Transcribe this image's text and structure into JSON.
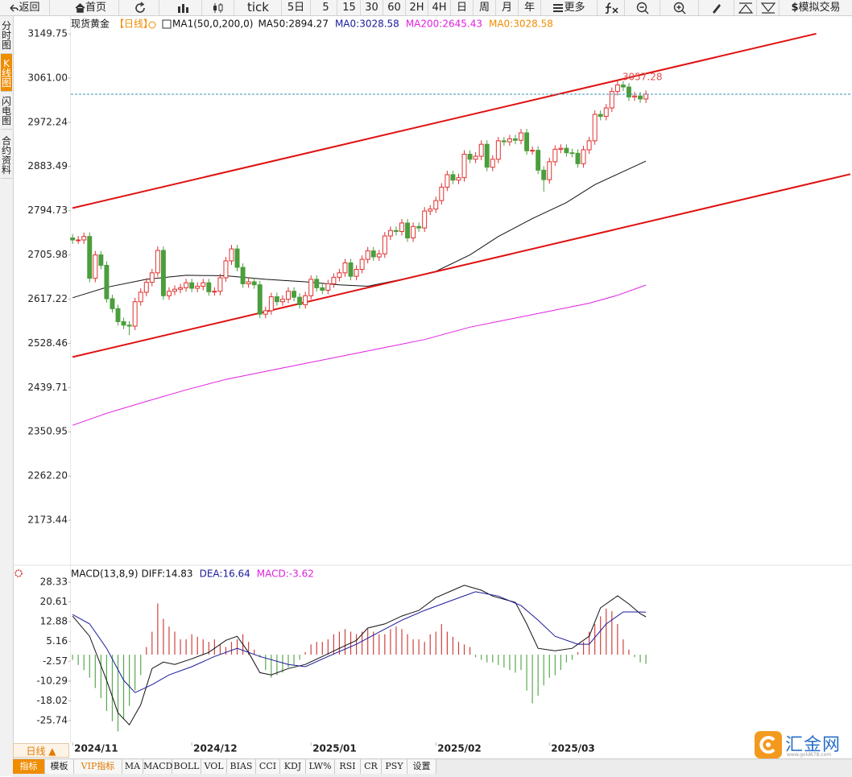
{
  "toolbar": {
    "back": "返回",
    "home": "首页",
    "buttons": [
      "tick",
      "5日",
      "5",
      "15",
      "30",
      "60",
      "2H",
      "4H",
      "日",
      "周",
      "月",
      "年"
    ],
    "more": "更多",
    "sim_trade": "模拟交易"
  },
  "sidebar": [
    "分时图",
    "K线图",
    "闪电图",
    "合约资料"
  ],
  "chart_data": [
    {
      "type": "candlestick",
      "title": "现货黄金",
      "period": "【日线】",
      "indicator": "MA1(50,0,200,0)",
      "legend": [
        {
          "text": "MA50:2894.27",
          "color": "#111111"
        },
        {
          "text": "MA0:3028.58",
          "color": "#1a1a9c"
        },
        {
          "text": "MA200:2645.43",
          "color": "#e020e0"
        },
        {
          "text": "MA0:3028.58",
          "color": "#f08c00"
        }
      ],
      "open": [
        2740,
        2736,
        2736,
        2743,
        2659,
        2706,
        2685,
        2618,
        2598,
        2572,
        2565,
        2563,
        2612,
        2631,
        2651,
        2670,
        2715,
        2624,
        2633,
        2637,
        2640,
        2650,
        2639,
        2643,
        2650,
        2632,
        2633,
        2660,
        2694,
        2718,
        2681,
        2648,
        2652,
        2646,
        2587,
        2594,
        2622,
        2612,
        2617,
        2633,
        2621,
        2606,
        2624,
        2657,
        2640,
        2635,
        2648,
        2661,
        2670,
        2690,
        2663,
        2677,
        2697,
        2714,
        2702,
        2708,
        2744,
        2755,
        2753,
        2770,
        2740,
        2763,
        2760,
        2794,
        2798,
        2815,
        2842,
        2867,
        2856,
        2861,
        2908,
        2898,
        2904,
        2928,
        2882,
        2898,
        2935,
        2933,
        2939,
        2936,
        2951,
        2915,
        2916,
        2876,
        2857,
        2893,
        2918,
        2920,
        2911,
        2910,
        2889,
        2917,
        2935,
        2988,
        2984,
        3001,
        3034,
        3047,
        3043,
        3023,
        3025,
        3019
      ],
      "high": [
        2748,
        2744,
        2751,
        2751,
        2714,
        2714,
        2693,
        2626,
        2606,
        2580,
        2573,
        2620,
        2639,
        2659,
        2678,
        2723,
        2723,
        2641,
        2645,
        2648,
        2658,
        2658,
        2651,
        2658,
        2658,
        2641,
        2668,
        2702,
        2726,
        2726,
        2689,
        2660,
        2660,
        2654,
        2602,
        2630,
        2630,
        2625,
        2641,
        2641,
        2629,
        2632,
        2665,
        2665,
        2648,
        2656,
        2669,
        2678,
        2698,
        2698,
        2685,
        2705,
        2722,
        2722,
        2716,
        2752,
        2763,
        2763,
        2778,
        2778,
        2771,
        2771,
        2802,
        2806,
        2823,
        2850,
        2875,
        2875,
        2869,
        2916,
        2916,
        2912,
        2936,
        2936,
        2906,
        2943,
        2943,
        2947,
        2947,
        2959,
        2959,
        2924,
        2924,
        2884,
        2901,
        2926,
        2928,
        2928,
        2919,
        2918,
        2925,
        2943,
        2996,
        2996,
        3009,
        3042,
        3057.28,
        3055,
        3051,
        3033,
        3033,
        3036
      ],
      "low": [
        2728,
        2728,
        2728,
        2651,
        2651,
        2677,
        2610,
        2590,
        2564,
        2557,
        2545,
        2555,
        2604,
        2623,
        2643,
        2662,
        2616,
        2616,
        2625,
        2629,
        2632,
        2631,
        2631,
        2635,
        2624,
        2624,
        2625,
        2652,
        2686,
        2673,
        2640,
        2640,
        2638,
        2579,
        2579,
        2586,
        2604,
        2604,
        2609,
        2613,
        2598,
        2598,
        2616,
        2632,
        2627,
        2627,
        2640,
        2653,
        2662,
        2655,
        2655,
        2669,
        2689,
        2694,
        2694,
        2700,
        2736,
        2745,
        2745,
        2732,
        2732,
        2752,
        2752,
        2786,
        2790,
        2807,
        2834,
        2848,
        2848,
        2853,
        2890,
        2890,
        2896,
        2874,
        2874,
        2890,
        2925,
        2925,
        2928,
        2928,
        2907,
        2907,
        2868,
        2833,
        2849,
        2885,
        2910,
        2903,
        2902,
        2881,
        2881,
        2909,
        2927,
        2976,
        2976,
        2993,
        3026,
        3035,
        3015,
        3015,
        3011,
        3011
      ],
      "close": [
        2736,
        2736,
        2743,
        2659,
        2706,
        2685,
        2618,
        2598,
        2572,
        2565,
        2563,
        2612,
        2631,
        2651,
        2670,
        2715,
        2624,
        2633,
        2637,
        2640,
        2650,
        2639,
        2643,
        2650,
        2632,
        2633,
        2660,
        2694,
        2718,
        2681,
        2648,
        2652,
        2646,
        2587,
        2594,
        2622,
        2612,
        2617,
        2633,
        2621,
        2606,
        2624,
        2657,
        2640,
        2635,
        2648,
        2661,
        2670,
        2690,
        2663,
        2677,
        2697,
        2714,
        2702,
        2708,
        2744,
        2755,
        2753,
        2770,
        2740,
        2763,
        2760,
        2794,
        2798,
        2815,
        2842,
        2867,
        2856,
        2861,
        2908,
        2898,
        2904,
        2928,
        2882,
        2898,
        2935,
        2933,
        2939,
        2936,
        2951,
        2915,
        2916,
        2876,
        2857,
        2893,
        2918,
        2920,
        2911,
        2910,
        2889,
        2917,
        2935,
        2988,
        2984,
        3001,
        3034,
        3047,
        3043,
        3023,
        3025,
        3019,
        3028.58
      ],
      "up_color": "#e03030",
      "down_color": "#4a9e3c",
      "last_line_color": "#3a8fb7",
      "max_label_color": "#e05050",
      "lines": [
        {
          "color": "#111111",
          "x": [
            0,
            6,
            13,
            20,
            27,
            34,
            41,
            47,
            52,
            58,
            64,
            70,
            75,
            81,
            87,
            92,
            96,
            101
          ],
          "values": [
            2620,
            2641,
            2657,
            2665,
            2664,
            2657,
            2652,
            2646,
            2643,
            2657,
            2673,
            2706,
            2743,
            2779,
            2811,
            2847,
            2868,
            2894.27
          ]
        },
        {
          "color": "#e020e0",
          "x": [
            0,
            6,
            13,
            20,
            27,
            34,
            41,
            48,
            55,
            62,
            70,
            77,
            84,
            91,
            96,
            101
          ],
          "values": [
            2364,
            2388,
            2412,
            2435,
            2456,
            2472,
            2488,
            2504,
            2520,
            2536,
            2561,
            2577,
            2593,
            2609,
            2625,
            2645.43
          ]
        },
        {
          "color": "#e01010",
          "width": 2,
          "x": [
            0,
            131
          ],
          "values": [
            2800,
            3150
          ]
        },
        {
          "color": "#e01010",
          "width": 2,
          "x": [
            0,
            137
          ],
          "values": [
            2501,
            2868
          ]
        }
      ],
      "xlim": [
        -0.3,
        137.3
      ],
      "ylim": [
        2086.3,
        3156.2
      ],
      "yticks": [
        3149.75,
        {
          "value": 3061,
          "label": "3061.00"
        },
        2972.24,
        2883.49,
        2794.73,
        2705.98,
        2617.22,
        2528.46,
        2439.71,
        2350.95,
        {
          "value": 2262.2,
          "label": "2262.20"
        },
        2173.44
      ],
      "xticks": [
        {
          "value": 0,
          "label": "2024/11"
        },
        {
          "value": 21,
          "label": "2024/12"
        },
        {
          "value": 42,
          "label": "2025/01"
        },
        {
          "value": 64,
          "label": "2025/02"
        },
        {
          "value": 84,
          "label": "2025/03"
        }
      ]
    },
    {
      "type": "macd",
      "title": "MACD(13,8,9)",
      "legend": [
        {
          "text": "DIFF:14.83",
          "color": "#111111"
        },
        {
          "text": "DEA:16.64",
          "color": "#1a1a9c"
        },
        {
          "text": "MACD:-3.62",
          "color": "#e020e0"
        }
      ],
      "values": [
        -2,
        -4,
        -6,
        -9,
        -13,
        -17,
        -22,
        -26,
        -30,
        -25,
        -20,
        -14,
        -8,
        3,
        9,
        20,
        14,
        11,
        9,
        6,
        6,
        8,
        7,
        6,
        5,
        6,
        4,
        3,
        5,
        6,
        8,
        5,
        2,
        -1,
        -6,
        -9,
        -8,
        -7,
        -5,
        -4,
        -2,
        1,
        4,
        5,
        5,
        6,
        8,
        9,
        10,
        9,
        8,
        9,
        10,
        9,
        8,
        8,
        10,
        11,
        10,
        8,
        6,
        6,
        5,
        8,
        9,
        12,
        9,
        7,
        5,
        4,
        3,
        -1,
        -2,
        -3,
        -3,
        -4,
        -5,
        -6,
        -7,
        -6,
        -14,
        -19,
        -16,
        -12,
        -9,
        -8,
        -6,
        -3,
        -2,
        1,
        5,
        9,
        12,
        15,
        18,
        17,
        12,
        6,
        2,
        -1,
        -3,
        -3.62
      ],
      "up_color": "#d04040",
      "down_color": "#5aa850",
      "lines": [
        {
          "color": "#111111",
          "x": [
            0,
            3,
            6,
            8,
            10,
            12,
            14,
            16,
            18,
            21,
            24,
            27,
            29,
            31,
            33,
            35,
            38,
            41,
            44,
            47,
            50,
            52,
            55,
            58,
            61,
            64,
            67,
            69,
            72,
            74,
            78,
            80,
            82,
            85,
            88,
            91,
            93,
            96,
            98,
            100,
            101
          ],
          "values": [
            15.1,
            7.2,
            -10,
            -22.7,
            -27.4,
            -19.6,
            -5.4,
            -2.9,
            -3.8,
            -1.6,
            0.9,
            5.6,
            7.2,
            0.9,
            -7,
            -7.9,
            -5.4,
            -3.8,
            -0.7,
            2.5,
            5.6,
            10.4,
            12,
            15.1,
            17.3,
            22.3,
            25.2,
            27.1,
            25.2,
            22.9,
            20.4,
            12,
            2.5,
            1.5,
            2.5,
            7.2,
            18.3,
            23,
            19.8,
            16,
            14.83
          ]
        },
        {
          "color": "#1a1a9c",
          "x": [
            0,
            3,
            6,
            9,
            11,
            14,
            17,
            21,
            25,
            29,
            33,
            38,
            41,
            45,
            50,
            54,
            58,
            62,
            67,
            71,
            75,
            79,
            82,
            85,
            89,
            91,
            94,
            97,
            99,
            101
          ],
          "values": [
            15.7,
            12,
            2.5,
            -10,
            -14.8,
            -11.7,
            -7.9,
            -4.7,
            -0.7,
            2.5,
            -0.7,
            -3.8,
            -4.7,
            -0.7,
            4.1,
            8.8,
            13.5,
            17.3,
            21.4,
            24.6,
            22.9,
            19.2,
            13.5,
            7.2,
            4.1,
            4.1,
            12,
            16.7,
            16.7,
            16.64
          ]
        }
      ],
      "xlim": [
        -0.3,
        137.3
      ],
      "ylim": [
        -34.25,
        34
      ],
      "yticks": [
        28.33,
        20.61,
        12.88,
        5.16,
        -2.57,
        -10.29,
        -18.02,
        -25.74
      ]
    }
  ],
  "bottom_bar": {
    "period_tab": "日线 ▲",
    "tabs": [
      "指标",
      "模板",
      "VIP指标",
      "MA",
      "MACD",
      "BOLL",
      "VOL",
      "BIAS",
      "CCI",
      "KDJ",
      "LW%",
      "RSI",
      "CR",
      "PSY",
      "设置"
    ]
  },
  "logo": {
    "name": "汇金网",
    "url": "www.gold678.com"
  }
}
